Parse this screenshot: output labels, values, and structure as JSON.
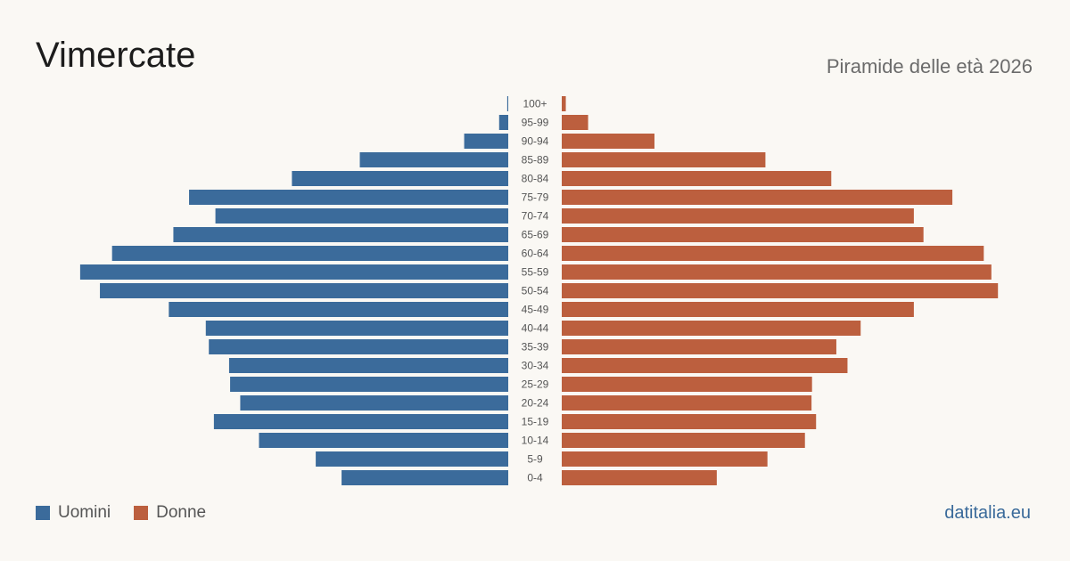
{
  "title": "Vimercate",
  "subtitle": "Piramide delle età 2026",
  "brand": "datitalia.eu",
  "colors": {
    "men": "#3b6b9b",
    "women": "#bc5f3e",
    "age_label": "#555555"
  },
  "legend": {
    "men_label": "Uomini",
    "women_label": "Donne"
  },
  "chart_data": {
    "type": "bar",
    "orientation": "horizontal-pyramid",
    "categories": [
      "100+",
      "95-99",
      "90-94",
      "85-89",
      "80-84",
      "75-79",
      "70-74",
      "65-69",
      "60-64",
      "55-59",
      "50-54",
      "45-49",
      "40-44",
      "35-39",
      "30-34",
      "25-29",
      "20-24",
      "15-19",
      "10-14",
      "5-9",
      "0-4"
    ],
    "series": [
      {
        "name": "Uomini",
        "values": [
          2,
          18,
          87,
          293,
          427,
          630,
          578,
          661,
          782,
          845,
          806,
          670,
          597,
          591,
          551,
          549,
          529,
          581,
          492,
          380,
          329
        ]
      },
      {
        "name": "Donne",
        "values": [
          8,
          52,
          183,
          402,
          532,
          771,
          695,
          714,
          833,
          848,
          861,
          695,
          590,
          542,
          564,
          494,
          493,
          502,
          480,
          406,
          306
        ]
      }
    ],
    "xlim": [
      0,
      880
    ],
    "grid": false,
    "legend_position": "bottom-left"
  }
}
